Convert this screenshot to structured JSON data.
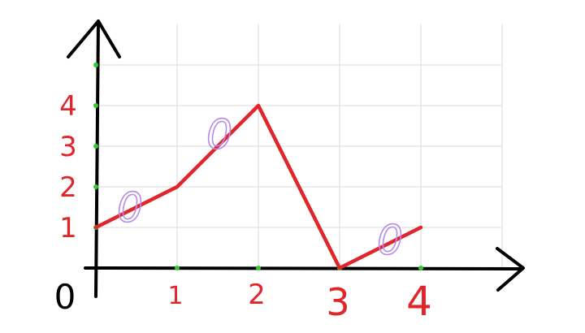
{
  "chart_data": {
    "type": "line",
    "title": "",
    "xlabel": "",
    "ylabel": "",
    "origin_label": "0",
    "x_ticks": [
      {
        "value": 1,
        "label": "1"
      },
      {
        "value": 2,
        "label": "2"
      },
      {
        "value": 3,
        "label": "3"
      },
      {
        "value": 4,
        "label": "4"
      }
    ],
    "y_ticks": [
      {
        "value": 1,
        "label": "1"
      },
      {
        "value": 2,
        "label": "2"
      },
      {
        "value": 3,
        "label": "3"
      },
      {
        "value": 4,
        "label": "4"
      }
    ],
    "xlim": [
      0,
      5
    ],
    "ylim": [
      0,
      5.5
    ],
    "grid": true,
    "series": [
      {
        "x": [
          0,
          1,
          2,
          3,
          4
        ],
        "y": [
          1,
          2,
          4,
          0,
          1
        ],
        "color": "#e0262b"
      }
    ],
    "slope_annotations": [
      {
        "label": "0",
        "x": 0.4,
        "y": 1.5
      },
      {
        "label": "0",
        "x": 1.5,
        "y": 3.3
      },
      {
        "label": "0",
        "x": 3.6,
        "y": 0.7
      }
    ],
    "colors": {
      "axis": "#000000",
      "grid": "#e6e6e6",
      "tick_label": "#e0262b",
      "tick_dot": "#2ecc2e",
      "annotation": "#b58be8",
      "origin_label": "#000000"
    }
  }
}
